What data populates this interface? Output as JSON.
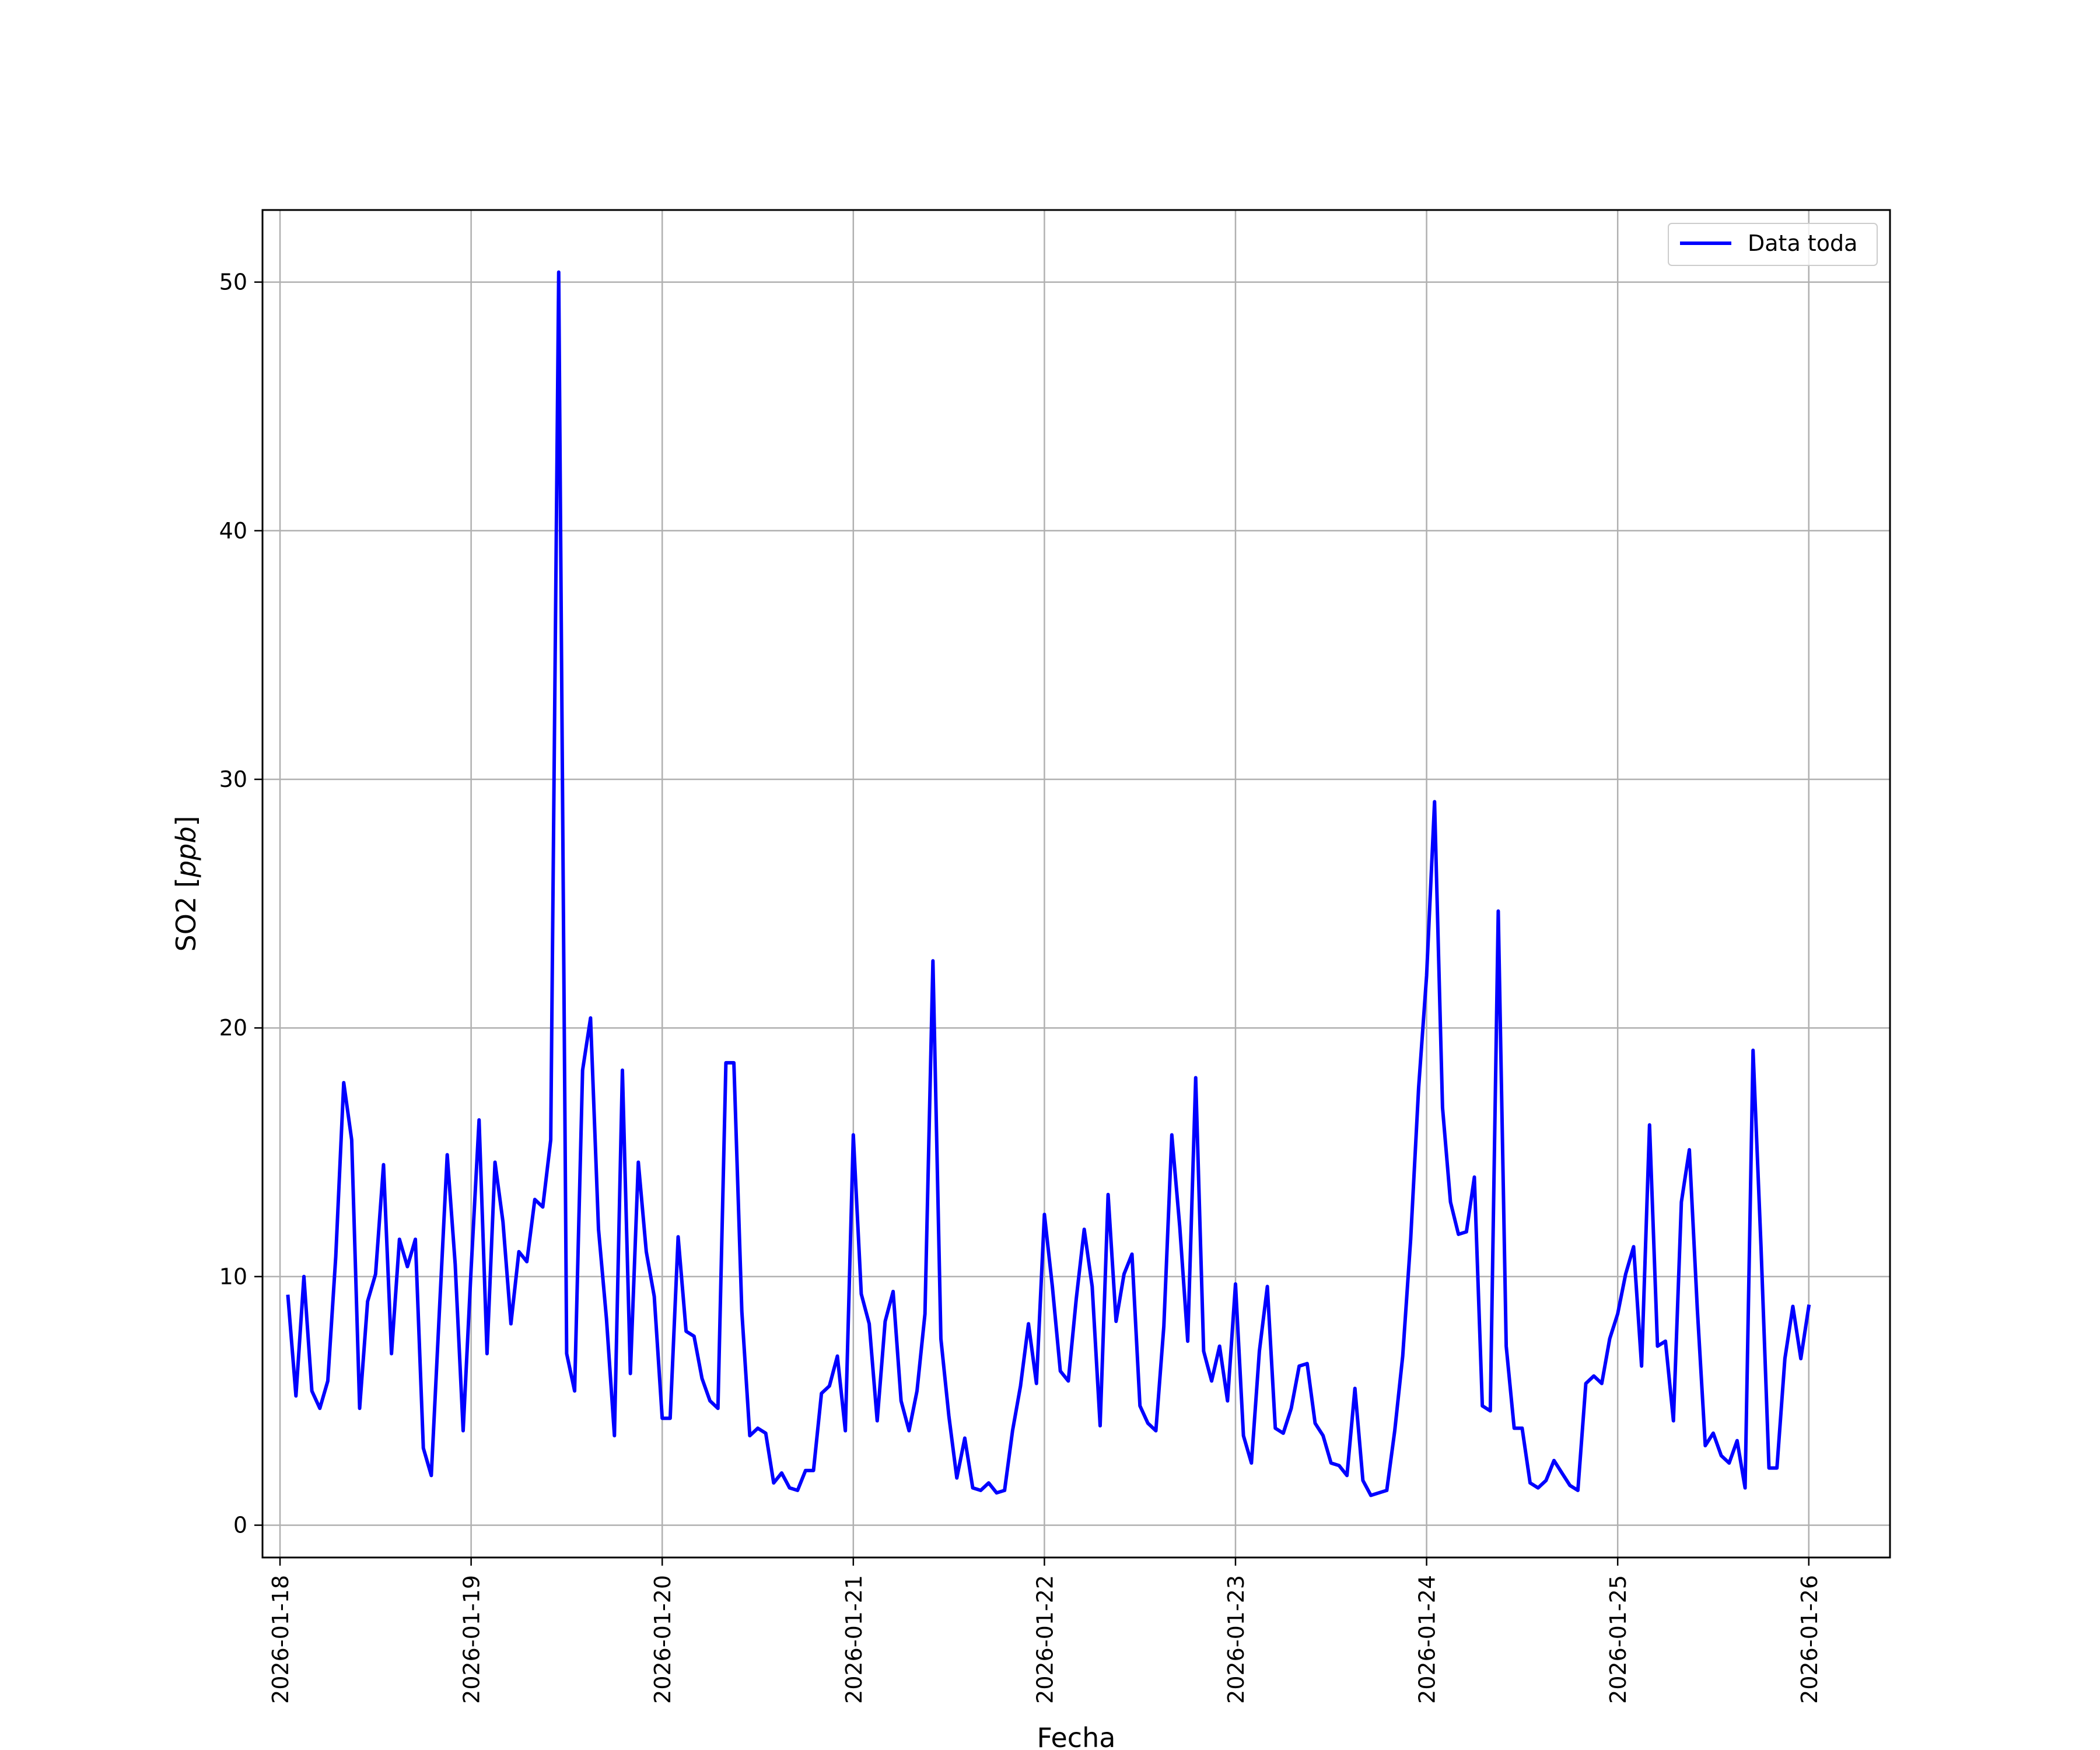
{
  "chart_data": {
    "type": "line",
    "xlabel": "Fecha",
    "ylabel": "SO2 [ppb]",
    "ylabel_parts": {
      "prefix": "SO2 [",
      "unit": "ppb",
      "suffix": "]"
    },
    "xlim": [
      "2026-01-17 21:48",
      "2026-01-26 10:12"
    ],
    "ylim": [
      -1.3,
      52.9
    ],
    "x_ticks": [
      "2026-01-18",
      "2026-01-19",
      "2026-01-20",
      "2026-01-21",
      "2026-01-22",
      "2026-01-23",
      "2026-01-24",
      "2026-01-25",
      "2026-01-26"
    ],
    "y_ticks": [
      0,
      10,
      20,
      30,
      40,
      50
    ],
    "y_tick_labels": [
      "0",
      "10",
      "20",
      "30",
      "40",
      "50"
    ],
    "grid": true,
    "legend": {
      "position": "top-right",
      "entries": [
        "Data toda"
      ]
    },
    "series": [
      {
        "name": "Data toda",
        "color": "#0000ff",
        "start": "2026-01-18 01:00",
        "interval_hours": 1,
        "values": [
          9.2,
          5.2,
          10.0,
          5.4,
          4.7,
          5.8,
          10.8,
          17.8,
          15.5,
          4.7,
          9.0,
          10.1,
          14.5,
          6.9,
          11.5,
          10.4,
          11.5,
          3.1,
          2.0,
          8.5,
          14.9,
          10.5,
          3.8,
          10.3,
          16.3,
          6.9,
          14.6,
          12.2,
          8.1,
          11.0,
          10.6,
          13.1,
          12.8,
          15.5,
          50.4,
          6.9,
          5.4,
          18.3,
          20.4,
          11.9,
          8.3,
          3.6,
          18.3,
          6.1,
          14.6,
          11.0,
          9.2,
          4.3,
          4.3,
          11.6,
          7.8,
          7.6,
          5.9,
          5.0,
          4.7,
          18.6,
          18.6,
          8.6,
          3.6,
          3.9,
          3.7,
          1.7,
          2.1,
          1.5,
          1.4,
          2.2,
          2.2,
          5.3,
          5.6,
          6.8,
          3.8,
          15.7,
          9.3,
          8.1,
          4.2,
          8.2,
          9.4,
          5.0,
          3.8,
          5.4,
          8.5,
          22.7,
          7.5,
          4.4,
          1.9,
          3.5,
          1.5,
          1.4,
          1.7,
          1.3,
          1.4,
          3.8,
          5.6,
          8.1,
          5.7,
          12.5,
          9.6,
          6.2,
          5.8,
          9.1,
          11.9,
          9.6,
          4.0,
          13.3,
          8.2,
          10.1,
          10.9,
          4.8,
          4.1,
          3.8,
          8.0,
          15.7,
          12.0,
          7.4,
          18.0,
          7.0,
          5.8,
          7.2,
          5.0,
          9.7,
          3.6,
          2.5,
          7.0,
          9.6,
          3.9,
          3.7,
          4.7,
          6.4,
          6.5,
          4.1,
          3.6,
          2.5,
          2.4,
          2.0,
          5.5,
          1.8,
          1.2,
          1.3,
          1.4,
          3.8,
          6.8,
          11.5,
          17.6,
          22.1,
          29.1,
          16.8,
          13.0,
          11.7,
          11.8,
          14.0,
          4.8,
          4.6,
          24.7,
          7.2,
          3.9,
          3.9,
          1.7,
          1.5,
          1.8,
          2.6,
          2.1,
          1.6,
          1.4,
          5.7,
          6.0,
          5.7,
          7.5,
          8.5,
          10.1,
          11.2,
          6.4,
          16.1,
          7.2,
          7.4,
          4.2,
          13.0,
          15.1,
          8.7,
          3.2,
          3.7,
          2.8,
          2.5,
          3.4,
          1.5,
          19.1,
          11.2,
          2.3,
          2.3,
          6.7,
          8.8,
          6.7,
          8.8
        ]
      }
    ]
  }
}
